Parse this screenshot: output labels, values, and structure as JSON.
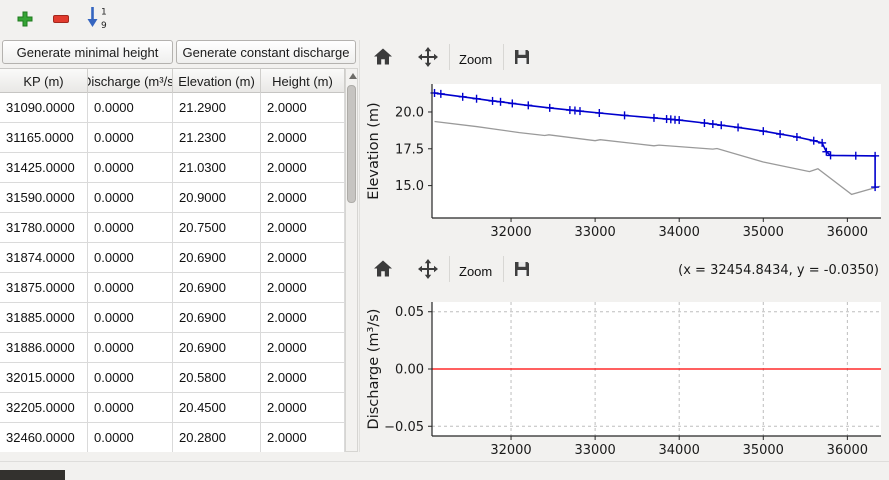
{
  "toolbar": {
    "add_tooltip": "add",
    "remove_tooltip": "remove",
    "sort_digits": [
      "1",
      "9"
    ]
  },
  "actions": {
    "generate_minimal_height": "Generate minimal height",
    "generate_constant_discharge": "Generate constant discharge"
  },
  "table": {
    "columns": [
      "KP (m)",
      "Discharge (m³/s)",
      "Elevation (m)",
      "Height (m)"
    ],
    "rows": [
      [
        "31090.0000",
        "0.0000",
        "21.2900",
        "2.0000"
      ],
      [
        "31165.0000",
        "0.0000",
        "21.2300",
        "2.0000"
      ],
      [
        "31425.0000",
        "0.0000",
        "21.0300",
        "2.0000"
      ],
      [
        "31590.0000",
        "0.0000",
        "20.9000",
        "2.0000"
      ],
      [
        "31780.0000",
        "0.0000",
        "20.7500",
        "2.0000"
      ],
      [
        "31874.0000",
        "0.0000",
        "20.6900",
        "2.0000"
      ],
      [
        "31875.0000",
        "0.0000",
        "20.6900",
        "2.0000"
      ],
      [
        "31885.0000",
        "0.0000",
        "20.6900",
        "2.0000"
      ],
      [
        "31886.0000",
        "0.0000",
        "20.6900",
        "2.0000"
      ],
      [
        "32015.0000",
        "0.0000",
        "20.5800",
        "2.0000"
      ],
      [
        "32205.0000",
        "0.0000",
        "20.4500",
        "2.0000"
      ],
      [
        "32460.0000",
        "0.0000",
        "20.2800",
        "2.0000"
      ]
    ]
  },
  "chart_toolbar": {
    "zoom_label": "Zoom"
  },
  "readout": {
    "coords": "(x = 32454.8434,  y = -0.0350)"
  },
  "chart_data": [
    {
      "type": "line",
      "title": "",
      "xlabel": "",
      "ylabel": "Elevation (m)",
      "xlim": [
        31060,
        36400
      ],
      "ylim": [
        12.8,
        21.9
      ],
      "xticks": [
        32000,
        33000,
        34000,
        35000,
        36000
      ],
      "xtick_labels": [
        "32000",
        "33000",
        "34000",
        "35000",
        "36000"
      ],
      "yticks": [
        15.0,
        17.5,
        20.0
      ],
      "ytick_labels": [
        "15.0",
        "17.5",
        "20.0"
      ],
      "grid": false,
      "series": [
        {
          "name": "bed-profile",
          "color": "#9a9a9a",
          "width": 1.3,
          "marker": null,
          "x": [
            31090,
            31600,
            32100,
            32400,
            32450,
            33000,
            33060,
            33700,
            33760,
            34400,
            34450,
            35000,
            35550,
            35650,
            36050,
            36390
          ],
          "y": [
            19.35,
            19.0,
            18.6,
            18.4,
            18.45,
            18.05,
            18.12,
            17.7,
            17.75,
            17.48,
            17.52,
            16.6,
            15.95,
            16.15,
            14.4,
            14.95
          ]
        },
        {
          "name": "water-surface",
          "color": "#0000cd",
          "width": 1.6,
          "marker": "plus",
          "x": [
            31090,
            31165,
            31425,
            31590,
            31780,
            31875,
            32015,
            32205,
            32460,
            32700,
            32760,
            32820,
            33050,
            33350,
            33700,
            33850,
            33900,
            33950,
            34000,
            34300,
            34400,
            34500,
            34700,
            35000,
            35200,
            35400,
            35600,
            35700,
            35750,
            35800,
            36100,
            36330,
            36330
          ],
          "y": [
            21.29,
            21.23,
            21.03,
            20.9,
            20.75,
            20.69,
            20.58,
            20.45,
            20.28,
            20.13,
            20.1,
            20.06,
            19.93,
            19.77,
            19.6,
            19.52,
            19.5,
            19.47,
            19.45,
            19.25,
            19.18,
            19.1,
            18.95,
            18.7,
            18.5,
            18.3,
            18.05,
            17.9,
            17.3,
            17.05,
            17.03,
            17.02,
            14.9
          ]
        }
      ]
    },
    {
      "type": "line",
      "title": "",
      "xlabel": "",
      "ylabel": "Discharge (m³/s)",
      "xlim": [
        31060,
        36400
      ],
      "ylim": [
        -0.0585,
        0.0585
      ],
      "xticks": [
        32000,
        33000,
        34000,
        35000,
        36000
      ],
      "xtick_labels": [
        "32000",
        "33000",
        "34000",
        "35000",
        "36000"
      ],
      "yticks": [
        -0.05,
        0.0,
        0.05
      ],
      "ytick_labels": [
        "−0.05",
        "0.00",
        "0.05"
      ],
      "grid": true,
      "series": [
        {
          "name": "discharge",
          "color": "#ff0000",
          "width": 1.3,
          "marker": null,
          "x": [
            31060,
            36400
          ],
          "y": [
            0,
            0
          ]
        }
      ]
    }
  ]
}
